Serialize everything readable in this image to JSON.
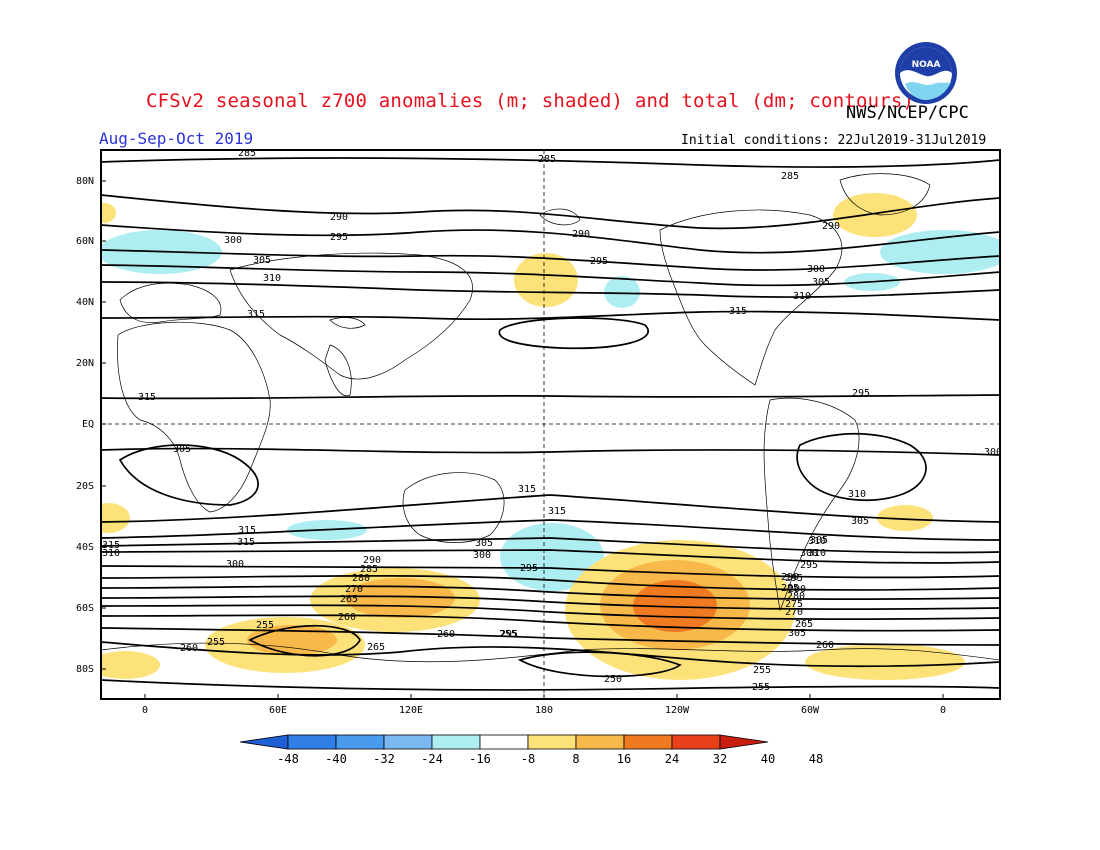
{
  "title": "CFSv2 seasonal z700 anomalies (m; shaded) and total (dm; contours)",
  "agency": "NWS/NCEP/CPC",
  "season": "Aug-Sep-Oct 2019",
  "initial_conditions": "Initial conditions: 22Jul2019-31Jul2019",
  "logo_text": "NOAA",
  "colors": {
    "title": "#e8101c",
    "season": "#2b33d8",
    "neg_16_8": "#aeeef2",
    "pos_8_16": "#fde27a",
    "pos_16_24": "#f9b84a",
    "pos_24_32": "#f07a22"
  },
  "map": {
    "lat_labels": [
      "80N",
      "60N",
      "40N",
      "20N",
      "EQ",
      "20S",
      "40S",
      "60S",
      "80S"
    ],
    "lon_labels": [
      "0",
      "60E",
      "120E",
      "180",
      "120W",
      "60W",
      "0"
    ],
    "contour_labels": [
      "285",
      "285",
      "285",
      "290",
      "295",
      "290",
      "290",
      "295",
      "300",
      "305",
      "310",
      "315",
      "300",
      "305",
      "310",
      "315",
      "315",
      "295",
      "300",
      "305",
      "310",
      "315",
      "315",
      "315",
      "315",
      "315",
      "310",
      "305",
      "310",
      "310",
      "305",
      "300",
      "295",
      "300",
      "295",
      "290",
      "290",
      "285",
      "280",
      "270",
      "265",
      "260",
      "255",
      "260",
      "255",
      "260",
      "265",
      "255",
      "250",
      "255",
      "255",
      "260",
      "265",
      "270",
      "275",
      "280",
      "285",
      "290",
      "295",
      "300",
      "305",
      "305",
      "295"
    ]
  },
  "colorbar": {
    "ticks": [
      "-48",
      "-40",
      "-32",
      "-24",
      "-16",
      "-8",
      "8",
      "16",
      "24",
      "32",
      "40",
      "48"
    ],
    "colors": [
      "#1e5fd6",
      "#2f7fe6",
      "#4a9aee",
      "#7ab8f2",
      "#aeeef2",
      "#ffffff",
      "#fde27a",
      "#f9b84a",
      "#f07a22",
      "#e8401a",
      "#c81e10"
    ]
  }
}
